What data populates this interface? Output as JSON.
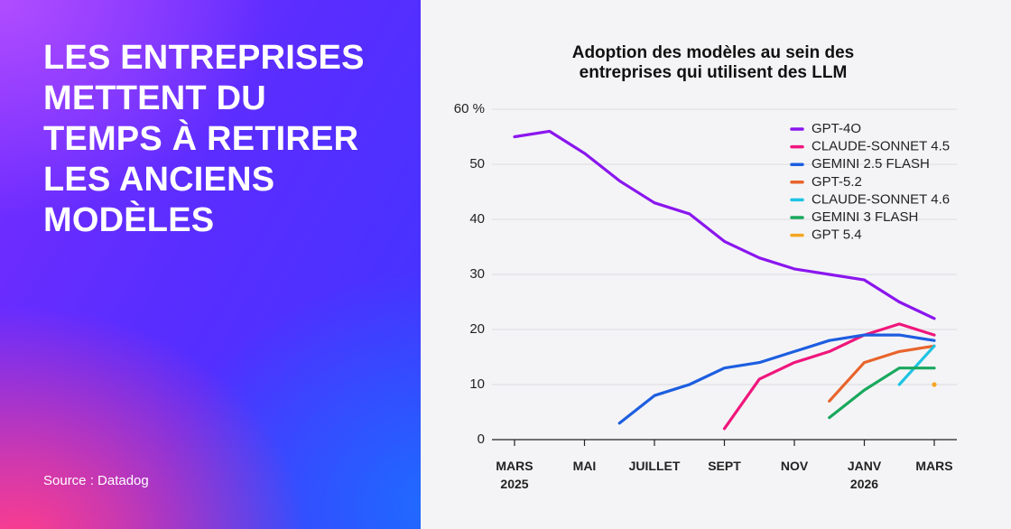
{
  "header": {
    "title": "LES ENTREPRISES\nMETTENT DU\nTEMPS À RETIRER\nLES ANCIENS\nMODÈLES",
    "source": "Source : Datadog"
  },
  "chart_data": {
    "type": "line",
    "title": "Adoption des modèles au sein des\nentreprises qui utilisent des LLM",
    "categories": [
      "MARS\n2025",
      null,
      "MAI",
      null,
      "JUILLET",
      null,
      "SEPT",
      null,
      "NOV",
      null,
      "JANV\n2026",
      null,
      "MARS"
    ],
    "ylim": [
      0,
      60
    ],
    "yticks": [
      0,
      10,
      20,
      30,
      40,
      50,
      {
        "value": 60,
        "label": "60 %"
      }
    ],
    "grid": true,
    "series": [
      {
        "name": "GPT-4O",
        "color": "#8a16ee",
        "values": [
          55,
          56,
          52,
          47,
          43,
          41,
          36,
          33,
          31,
          30,
          29,
          25,
          22
        ]
      },
      {
        "name": "CLAUDE-SONNET 4.5",
        "color": "#f0167c",
        "values": [
          null,
          null,
          null,
          null,
          null,
          null,
          2,
          11,
          14,
          16,
          19,
          21,
          19
        ]
      },
      {
        "name": "GEMINI 2.5 FLASH",
        "color": "#1d5ee0",
        "values": [
          null,
          null,
          null,
          3,
          8,
          10,
          13,
          14,
          16,
          18,
          19,
          19,
          18
        ]
      },
      {
        "name": "GPT-5.2",
        "color": "#e8642c",
        "values": [
          null,
          null,
          null,
          null,
          null,
          null,
          null,
          null,
          null,
          7,
          14,
          16,
          17
        ]
      },
      {
        "name": "CLAUDE-SONNET 4.6",
        "color": "#1ec3e2",
        "values": [
          null,
          null,
          null,
          null,
          null,
          null,
          null,
          null,
          null,
          null,
          null,
          10,
          17
        ]
      },
      {
        "name": "GEMINI 3 FLASH",
        "color": "#19a85e",
        "values": [
          null,
          null,
          null,
          null,
          null,
          null,
          null,
          null,
          null,
          4,
          9,
          13,
          13
        ]
      },
      {
        "name": "GPT 5.4",
        "color": "#f5a623",
        "values": [
          null,
          null,
          null,
          null,
          null,
          null,
          null,
          null,
          null,
          null,
          null,
          null,
          10
        ]
      }
    ]
  }
}
